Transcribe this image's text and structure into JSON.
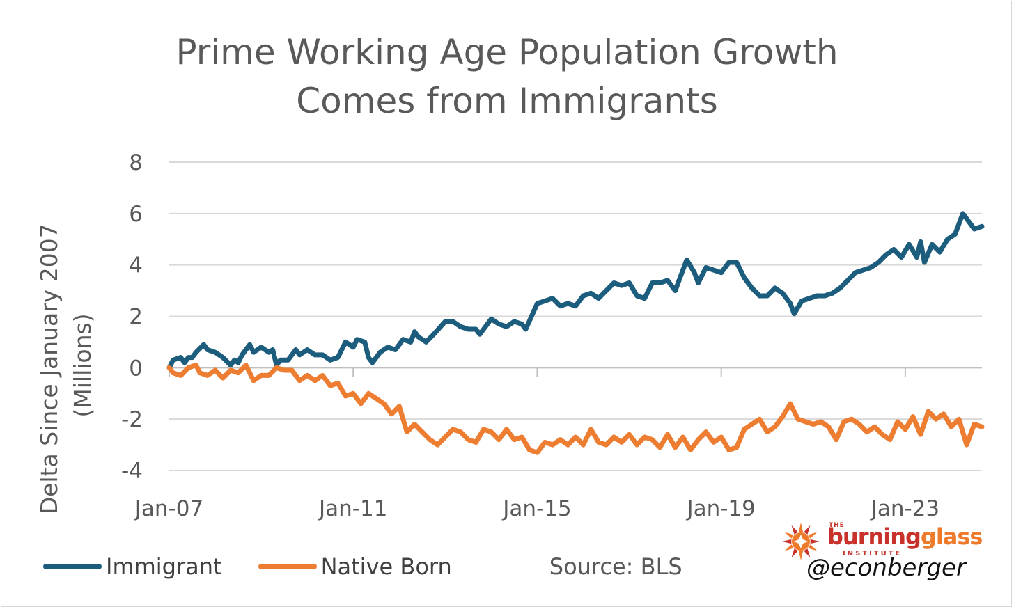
{
  "title_lines": [
    "Prime Working Age Population Growth",
    "Comes from Immigrants"
  ],
  "ylabel_lines": [
    "Delta Since January 2007",
    "(Millions)"
  ],
  "source_note": "Source: BLS",
  "logo": {
    "the": "THE",
    "name_part1": "burning",
    "name_part2": "glass",
    "institute": "INSTITUTE",
    "handle": "@econberger"
  },
  "colors": {
    "immigrant": "#1c5d7e",
    "native_born": "#ed7d31",
    "grid": "#d9d9d9",
    "axis": "#bfbfbf",
    "logo_red": "#c8322a",
    "logo_orange": "#ee7a2c"
  },
  "chart_data": {
    "type": "line",
    "title": "Prime Working Age Population Growth Comes from Immigrants",
    "xlabel": "",
    "ylabel": "Delta Since January 2007 (Millions)",
    "ylim": [
      -4,
      8
    ],
    "yticks": [
      8,
      6,
      4,
      2,
      0,
      -2,
      -4
    ],
    "x_range": [
      "2007-01",
      "2024-09"
    ],
    "xticks": [
      {
        "date": "2007-01",
        "label": "Jan-07"
      },
      {
        "date": "2011-01",
        "label": "Jan-11"
      },
      {
        "date": "2015-01",
        "label": "Jan-15"
      },
      {
        "date": "2019-01",
        "label": "Jan-19"
      },
      {
        "date": "2023-01",
        "label": "Jan-23"
      }
    ],
    "grid": true,
    "legend_position": "bottom",
    "series": [
      {
        "name": "Immigrant",
        "color": "#1c5d7e",
        "points": [
          [
            "2007-01",
            0.0
          ],
          [
            "2007-02",
            0.3
          ],
          [
            "2007-04",
            0.4
          ],
          [
            "2007-05",
            0.2
          ],
          [
            "2007-06",
            0.4
          ],
          [
            "2007-07",
            0.4
          ],
          [
            "2007-08",
            0.6
          ],
          [
            "2007-10",
            0.9
          ],
          [
            "2007-11",
            0.7
          ],
          [
            "2008-01",
            0.6
          ],
          [
            "2008-03",
            0.4
          ],
          [
            "2008-05",
            0.1
          ],
          [
            "2008-06",
            0.3
          ],
          [
            "2008-07",
            0.2
          ],
          [
            "2008-08",
            0.5
          ],
          [
            "2008-10",
            0.9
          ],
          [
            "2008-11",
            0.6
          ],
          [
            "2009-01",
            0.8
          ],
          [
            "2009-03",
            0.6
          ],
          [
            "2009-04",
            0.7
          ],
          [
            "2009-05",
            0.1
          ],
          [
            "2009-06",
            0.3
          ],
          [
            "2009-08",
            0.3
          ],
          [
            "2009-10",
            0.7
          ],
          [
            "2009-11",
            0.5
          ],
          [
            "2010-01",
            0.7
          ],
          [
            "2010-03",
            0.5
          ],
          [
            "2010-05",
            0.5
          ],
          [
            "2010-07",
            0.3
          ],
          [
            "2010-09",
            0.4
          ],
          [
            "2010-11",
            1.0
          ],
          [
            "2011-01",
            0.8
          ],
          [
            "2011-02",
            1.1
          ],
          [
            "2011-04",
            1.0
          ],
          [
            "2011-05",
            0.4
          ],
          [
            "2011-06",
            0.2
          ],
          [
            "2011-08",
            0.6
          ],
          [
            "2011-10",
            0.8
          ],
          [
            "2011-12",
            0.7
          ],
          [
            "2012-02",
            1.1
          ],
          [
            "2012-04",
            1.0
          ],
          [
            "2012-05",
            1.4
          ],
          [
            "2012-06",
            1.2
          ],
          [
            "2012-08",
            1.0
          ],
          [
            "2012-10",
            1.3
          ],
          [
            "2013-01",
            1.8
          ],
          [
            "2013-03",
            1.8
          ],
          [
            "2013-05",
            1.6
          ],
          [
            "2013-07",
            1.5
          ],
          [
            "2013-09",
            1.5
          ],
          [
            "2013-10",
            1.3
          ],
          [
            "2014-01",
            1.9
          ],
          [
            "2014-03",
            1.7
          ],
          [
            "2014-05",
            1.6
          ],
          [
            "2014-07",
            1.8
          ],
          [
            "2014-09",
            1.7
          ],
          [
            "2014-10",
            1.5
          ],
          [
            "2015-01",
            2.5
          ],
          [
            "2015-03",
            2.6
          ],
          [
            "2015-05",
            2.7
          ],
          [
            "2015-07",
            2.4
          ],
          [
            "2015-09",
            2.5
          ],
          [
            "2015-11",
            2.4
          ],
          [
            "2016-01",
            2.8
          ],
          [
            "2016-03",
            2.9
          ],
          [
            "2016-05",
            2.7
          ],
          [
            "2016-07",
            3.0
          ],
          [
            "2016-09",
            3.3
          ],
          [
            "2016-11",
            3.2
          ],
          [
            "2017-01",
            3.3
          ],
          [
            "2017-03",
            2.8
          ],
          [
            "2017-05",
            2.7
          ],
          [
            "2017-07",
            3.3
          ],
          [
            "2017-09",
            3.3
          ],
          [
            "2017-11",
            3.4
          ],
          [
            "2018-01",
            3.0
          ],
          [
            "2018-02",
            3.4
          ],
          [
            "2018-04",
            4.2
          ],
          [
            "2018-06",
            3.7
          ],
          [
            "2018-07",
            3.3
          ],
          [
            "2018-09",
            3.9
          ],
          [
            "2018-11",
            3.8
          ],
          [
            "2019-01",
            3.7
          ],
          [
            "2019-03",
            4.1
          ],
          [
            "2019-05",
            4.1
          ],
          [
            "2019-07",
            3.5
          ],
          [
            "2019-09",
            3.1
          ],
          [
            "2019-11",
            2.8
          ],
          [
            "2020-01",
            2.8
          ],
          [
            "2020-03",
            3.1
          ],
          [
            "2020-05",
            2.9
          ],
          [
            "2020-07",
            2.5
          ],
          [
            "2020-08",
            2.1
          ],
          [
            "2020-10",
            2.6
          ],
          [
            "2020-12",
            2.7
          ],
          [
            "2021-02",
            2.8
          ],
          [
            "2021-04",
            2.8
          ],
          [
            "2021-06",
            2.9
          ],
          [
            "2021-08",
            3.1
          ],
          [
            "2021-10",
            3.4
          ],
          [
            "2021-12",
            3.7
          ],
          [
            "2022-02",
            3.8
          ],
          [
            "2022-04",
            3.9
          ],
          [
            "2022-06",
            4.1
          ],
          [
            "2022-08",
            4.4
          ],
          [
            "2022-10",
            4.6
          ],
          [
            "2022-12",
            4.3
          ],
          [
            "2023-02",
            4.8
          ],
          [
            "2023-04",
            4.3
          ],
          [
            "2023-05",
            4.9
          ],
          [
            "2023-06",
            4.1
          ],
          [
            "2023-08",
            4.8
          ],
          [
            "2023-10",
            4.5
          ],
          [
            "2023-12",
            5.0
          ],
          [
            "2024-02",
            5.2
          ],
          [
            "2024-04",
            6.0
          ],
          [
            "2024-05",
            5.8
          ],
          [
            "2024-07",
            5.4
          ],
          [
            "2024-09",
            5.5
          ]
        ]
      },
      {
        "name": "Native Born",
        "color": "#ed7d31",
        "points": [
          [
            "2007-01",
            0.0
          ],
          [
            "2007-02",
            -0.2
          ],
          [
            "2007-04",
            -0.3
          ],
          [
            "2007-06",
            0.0
          ],
          [
            "2007-08",
            0.1
          ],
          [
            "2007-09",
            -0.2
          ],
          [
            "2007-11",
            -0.3
          ],
          [
            "2008-01",
            -0.1
          ],
          [
            "2008-03",
            -0.4
          ],
          [
            "2008-05",
            -0.1
          ],
          [
            "2008-07",
            -0.2
          ],
          [
            "2008-09",
            0.1
          ],
          [
            "2008-11",
            -0.5
          ],
          [
            "2009-01",
            -0.3
          ],
          [
            "2009-03",
            -0.3
          ],
          [
            "2009-05",
            0.0
          ],
          [
            "2009-07",
            -0.1
          ],
          [
            "2009-09",
            -0.1
          ],
          [
            "2009-11",
            -0.5
          ],
          [
            "2010-01",
            -0.3
          ],
          [
            "2010-03",
            -0.5
          ],
          [
            "2010-05",
            -0.3
          ],
          [
            "2010-07",
            -0.7
          ],
          [
            "2010-09",
            -0.6
          ],
          [
            "2010-11",
            -1.1
          ],
          [
            "2011-01",
            -1.0
          ],
          [
            "2011-03",
            -1.4
          ],
          [
            "2011-05",
            -1.0
          ],
          [
            "2011-07",
            -1.2
          ],
          [
            "2011-09",
            -1.4
          ],
          [
            "2011-11",
            -1.8
          ],
          [
            "2012-01",
            -1.5
          ],
          [
            "2012-03",
            -2.5
          ],
          [
            "2012-05",
            -2.2
          ],
          [
            "2012-07",
            -2.5
          ],
          [
            "2012-09",
            -2.8
          ],
          [
            "2012-11",
            -3.0
          ],
          [
            "2013-01",
            -2.7
          ],
          [
            "2013-03",
            -2.4
          ],
          [
            "2013-05",
            -2.5
          ],
          [
            "2013-07",
            -2.8
          ],
          [
            "2013-09",
            -2.9
          ],
          [
            "2013-11",
            -2.4
          ],
          [
            "2014-01",
            -2.5
          ],
          [
            "2014-03",
            -2.8
          ],
          [
            "2014-05",
            -2.4
          ],
          [
            "2014-07",
            -2.8
          ],
          [
            "2014-09",
            -2.7
          ],
          [
            "2014-11",
            -3.2
          ],
          [
            "2015-01",
            -3.3
          ],
          [
            "2015-03",
            -2.9
          ],
          [
            "2015-05",
            -3.0
          ],
          [
            "2015-07",
            -2.8
          ],
          [
            "2015-09",
            -3.0
          ],
          [
            "2015-11",
            -2.7
          ],
          [
            "2016-01",
            -3.0
          ],
          [
            "2016-03",
            -2.4
          ],
          [
            "2016-05",
            -2.9
          ],
          [
            "2016-07",
            -3.0
          ],
          [
            "2016-09",
            -2.7
          ],
          [
            "2016-11",
            -2.9
          ],
          [
            "2017-01",
            -2.6
          ],
          [
            "2017-03",
            -3.0
          ],
          [
            "2017-05",
            -2.7
          ],
          [
            "2017-07",
            -2.8
          ],
          [
            "2017-09",
            -3.1
          ],
          [
            "2017-11",
            -2.6
          ],
          [
            "2018-01",
            -3.1
          ],
          [
            "2018-03",
            -2.7
          ],
          [
            "2018-05",
            -3.2
          ],
          [
            "2018-07",
            -2.8
          ],
          [
            "2018-09",
            -2.5
          ],
          [
            "2018-11",
            -2.9
          ],
          [
            "2019-01",
            -2.7
          ],
          [
            "2019-03",
            -3.2
          ],
          [
            "2019-05",
            -3.1
          ],
          [
            "2019-07",
            -2.4
          ],
          [
            "2019-09",
            -2.2
          ],
          [
            "2019-11",
            -2.0
          ],
          [
            "2020-01",
            -2.5
          ],
          [
            "2020-03",
            -2.3
          ],
          [
            "2020-05",
            -1.9
          ],
          [
            "2020-07",
            -1.4
          ],
          [
            "2020-09",
            -2.0
          ],
          [
            "2020-11",
            -2.1
          ],
          [
            "2021-01",
            -2.2
          ],
          [
            "2021-03",
            -2.1
          ],
          [
            "2021-05",
            -2.3
          ],
          [
            "2021-07",
            -2.8
          ],
          [
            "2021-09",
            -2.1
          ],
          [
            "2021-11",
            -2.0
          ],
          [
            "2022-01",
            -2.2
          ],
          [
            "2022-03",
            -2.5
          ],
          [
            "2022-05",
            -2.3
          ],
          [
            "2022-07",
            -2.6
          ],
          [
            "2022-09",
            -2.8
          ],
          [
            "2022-11",
            -2.1
          ],
          [
            "2023-01",
            -2.4
          ],
          [
            "2023-03",
            -1.9
          ],
          [
            "2023-05",
            -2.6
          ],
          [
            "2023-07",
            -1.7
          ],
          [
            "2023-09",
            -2.0
          ],
          [
            "2023-11",
            -1.8
          ],
          [
            "2024-01",
            -2.3
          ],
          [
            "2024-03",
            -2.0
          ],
          [
            "2024-05",
            -3.0
          ],
          [
            "2024-07",
            -2.2
          ],
          [
            "2024-09",
            -2.3
          ]
        ]
      }
    ]
  }
}
